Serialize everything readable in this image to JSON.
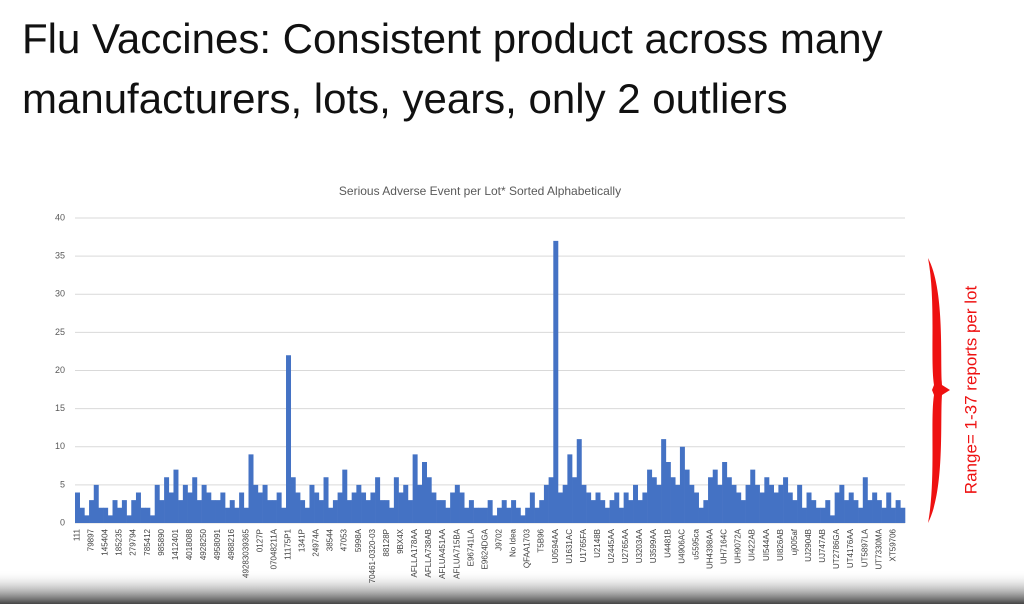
{
  "heading": [
    "Flu Vaccines: Consistent product across many",
    "manufacturers, lots, years, only 2 outliers"
  ],
  "annotation": "Range= 1-37 reports per lot",
  "chart_data": {
    "type": "bar",
    "title": "Serious Adverse Event per Lot* Sorted Alphabetically",
    "color": "#4472c4",
    "grid": true,
    "ylim": [
      0,
      40
    ],
    "yticks": [
      0,
      5,
      10,
      15,
      20,
      25,
      30,
      35,
      40
    ],
    "categories": [
      "111",
      null,
      null,
      "79897",
      null,
      null,
      "145404",
      null,
      null,
      "185235",
      null,
      null,
      "279794",
      null,
      null,
      "785412",
      null,
      null,
      "985890",
      null,
      null,
      "1412401",
      null,
      null,
      "4018088",
      null,
      null,
      "4928250",
      null,
      null,
      "4958091",
      null,
      null,
      "4988216",
      null,
      null,
      "49283039365",
      null,
      null,
      "0127P",
      null,
      null,
      "07048211A",
      null,
      null,
      "11175P1",
      null,
      null,
      "1341P",
      null,
      null,
      "24974A",
      null,
      null,
      "38544",
      null,
      null,
      "47053",
      null,
      null,
      "5998A",
      null,
      null,
      "70461-0320-03",
      null,
      null,
      "88128P",
      null,
      null,
      "9BX4X",
      null,
      null,
      "AFLLA178AA",
      null,
      null,
      "AFLLA738AB",
      null,
      null,
      "AFLUA451AA",
      null,
      null,
      "AFLUA715BA",
      null,
      null,
      "E96741LA",
      null,
      null,
      "E9624DGA",
      null,
      null,
      "J9702",
      null,
      null,
      "No Idea",
      null,
      null,
      "QFAA1703",
      null,
      null,
      "T5B96",
      null,
      null,
      "U0594AA",
      null,
      null,
      "U1631AC",
      null,
      null,
      "U1765FA",
      null,
      null,
      "U2148B",
      null,
      null,
      "U2445AA",
      null,
      null,
      "U2765AA",
      null,
      null,
      "U3203AA",
      null,
      null,
      "U3599AA",
      null,
      null,
      "U4481B",
      null,
      null,
      "U4906AC",
      null,
      null,
      "u5595ca",
      null,
      null,
      "UH4398AA",
      null,
      null,
      "UH7164C",
      null,
      null,
      "UH9072A",
      null,
      null,
      "UI422AB",
      null,
      null,
      "UI544AA",
      null,
      null,
      "UI826AB",
      null,
      null,
      "uj005af",
      null,
      null,
      "UJ2904B",
      null,
      null,
      "UJ747AB",
      null,
      null,
      "UT2786GA",
      null,
      null,
      "UT4176AA",
      null,
      null,
      "UT5897LA",
      null,
      null,
      "UT7330MA",
      null,
      null,
      "XT59706",
      null,
      null
    ],
    "values": [
      4,
      2,
      1,
      3,
      5,
      2,
      2,
      1,
      3,
      2,
      3,
      1,
      3,
      4,
      2,
      2,
      1,
      5,
      3,
      6,
      4,
      7,
      3,
      5,
      4,
      6,
      3,
      5,
      4,
      3,
      3,
      4,
      2,
      3,
      2,
      4,
      2,
      9,
      5,
      4,
      5,
      3,
      3,
      4,
      2,
      22,
      6,
      4,
      3,
      2,
      5,
      4,
      3,
      6,
      2,
      3,
      4,
      7,
      3,
      4,
      5,
      4,
      3,
      4,
      6,
      3,
      3,
      2,
      6,
      4,
      5,
      3,
      9,
      5,
      8,
      6,
      4,
      3,
      3,
      2,
      4,
      5,
      4,
      2,
      3,
      2,
      2,
      2,
      3,
      1,
      2,
      3,
      2,
      3,
      2,
      1,
      2,
      4,
      2,
      3,
      5,
      6,
      37,
      4,
      5,
      9,
      6,
      11,
      5,
      4,
      3,
      4,
      3,
      2,
      3,
      4,
      2,
      4,
      3,
      5,
      3,
      4,
      7,
      6,
      5,
      11,
      8,
      6,
      5,
      10,
      7,
      5,
      4,
      2,
      3,
      6,
      7,
      5,
      8,
      6,
      5,
      4,
      3,
      5,
      7,
      5,
      4,
      6,
      5,
      4,
      5,
      6,
      4,
      3,
      5,
      2,
      4,
      3,
      2,
      2,
      3,
      1,
      4,
      5,
      3,
      4,
      3,
      2,
      6,
      3,
      4,
      3,
      2,
      4,
      2,
      3,
      2
    ]
  }
}
